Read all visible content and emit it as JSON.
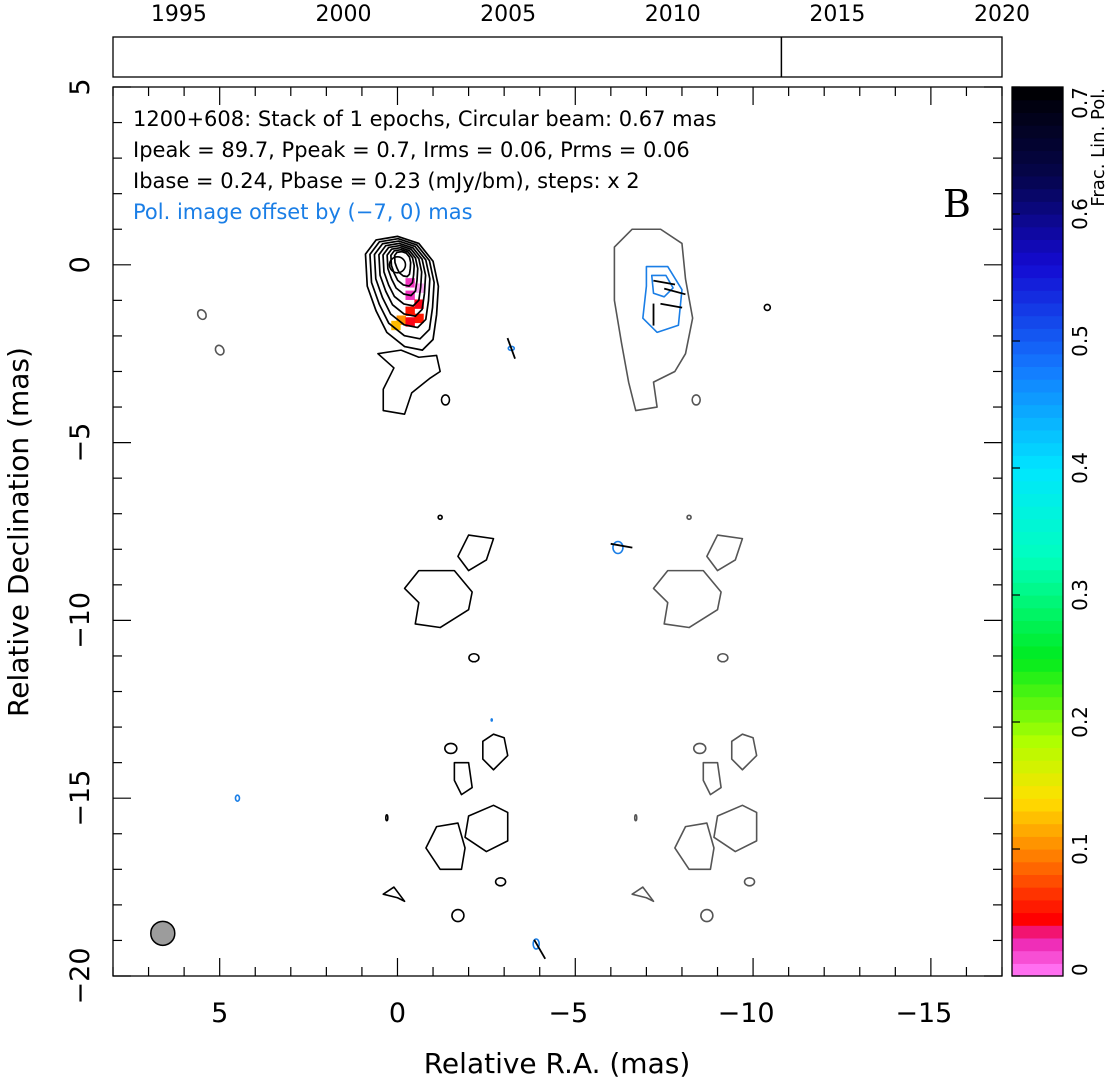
{
  "timeline": {
    "year_ticks": [
      "1995",
      "2000",
      "2005",
      "2010",
      "2015",
      "2020"
    ],
    "years": [
      1995,
      2000,
      2005,
      2010,
      2015,
      2020
    ],
    "range": [
      1993.0,
      2020.0
    ],
    "epoch_marker_year": 2013.3
  },
  "header": {
    "line1": "1200+608: Stack of 1 epochs, Circular beam: 0.67 mas",
    "line2": "Ipeak = 89.7, Ppeak = 0.7, Irms = 0.06, Prms = 0.06",
    "line3": "Ibase = 0.24, Pbase = 0.23 (mJy/bm), steps: x 2",
    "line4": "Pol. image offset by (−7, 0) mas",
    "panel_letter": "B"
  },
  "colors": {
    "stokes_i_contour": "#000000",
    "pol_intensity_contour": "#555555",
    "pol_offset_contour": "#1a7ee6",
    "pol_offset_text": "#1a7ee6",
    "beam_fill": "#9c9c9c"
  },
  "chart_data": {
    "type": "contour",
    "xlabel": "Relative R.A. (mas)",
    "ylabel": "Relative Declination (mas)",
    "xlim": [
      8,
      -17
    ],
    "ylim": [
      -20,
      5
    ],
    "x_ticks": [
      5,
      0,
      -5,
      -10,
      -15
    ],
    "x_tick_labels": [
      "5",
      "0",
      "−5",
      "−10",
      "−15"
    ],
    "y_ticks": [
      5,
      0,
      -5,
      -10,
      -15,
      -20
    ],
    "y_tick_labels": [
      "5",
      "0",
      "−5",
      "−10",
      "−15",
      "−20"
    ],
    "beam": {
      "x": 6.6,
      "y": -18.8,
      "diameter_mas": 0.67
    },
    "stokes_i_peak": {
      "x": 0.0,
      "y": 0.0,
      "peak_mJy_per_beam": 89.7
    },
    "fractional_pol_pixels": [
      {
        "x": -0.35,
        "y": -0.5,
        "v": 0.02
      },
      {
        "x": -0.6,
        "y": -0.65,
        "v": 0.0
      },
      {
        "x": -0.35,
        "y": -0.85,
        "v": 0.02
      },
      {
        "x": -0.6,
        "y": -1.1,
        "v": 0.04
      },
      {
        "x": -0.35,
        "y": -1.3,
        "v": 0.05
      },
      {
        "x": -0.6,
        "y": -1.5,
        "v": 0.05
      },
      {
        "x": -0.1,
        "y": -1.55,
        "v": 0.1
      },
      {
        "x": -0.35,
        "y": -1.6,
        "v": 0.04
      },
      {
        "x": 0.05,
        "y": -1.7,
        "v": 0.12
      }
    ],
    "evpa_ticks": [
      {
        "x": -7.5,
        "y": -0.5,
        "angle": 80
      },
      {
        "x": -7.8,
        "y": -0.75,
        "angle": 75
      },
      {
        "x": -7.2,
        "y": -1.4,
        "angle": 0
      },
      {
        "x": -7.7,
        "y": -1.15,
        "angle": 80
      },
      {
        "x": -6.3,
        "y": -7.9,
        "angle": 80
      },
      {
        "x": -3.2,
        "y": -2.35,
        "angle": 20
      },
      {
        "x": -4.0,
        "y": -19.25,
        "angle": 30
      }
    ],
    "colorbar": {
      "label": "Frac. Lin. Pol.",
      "range": [
        0,
        0.7
      ],
      "ticks": [
        0,
        0.1,
        0.2,
        0.3,
        0.4,
        0.5,
        0.6,
        0.7
      ],
      "tick_labels": [
        "0",
        "0.1",
        "0.2",
        "0.3",
        "0.4",
        "0.5",
        "0.6",
        "0.7"
      ]
    },
    "series": [
      {
        "name": "Stokes I",
        "levels_mJy_per_beam": [
          0.24,
          0.48,
          0.96,
          1.92,
          3.84,
          7.68,
          15.36,
          30.72,
          61.44
        ]
      },
      {
        "name": "Polarized intensity",
        "levels_mJy_per_beam": [
          0.23,
          0.46
        ]
      }
    ]
  }
}
